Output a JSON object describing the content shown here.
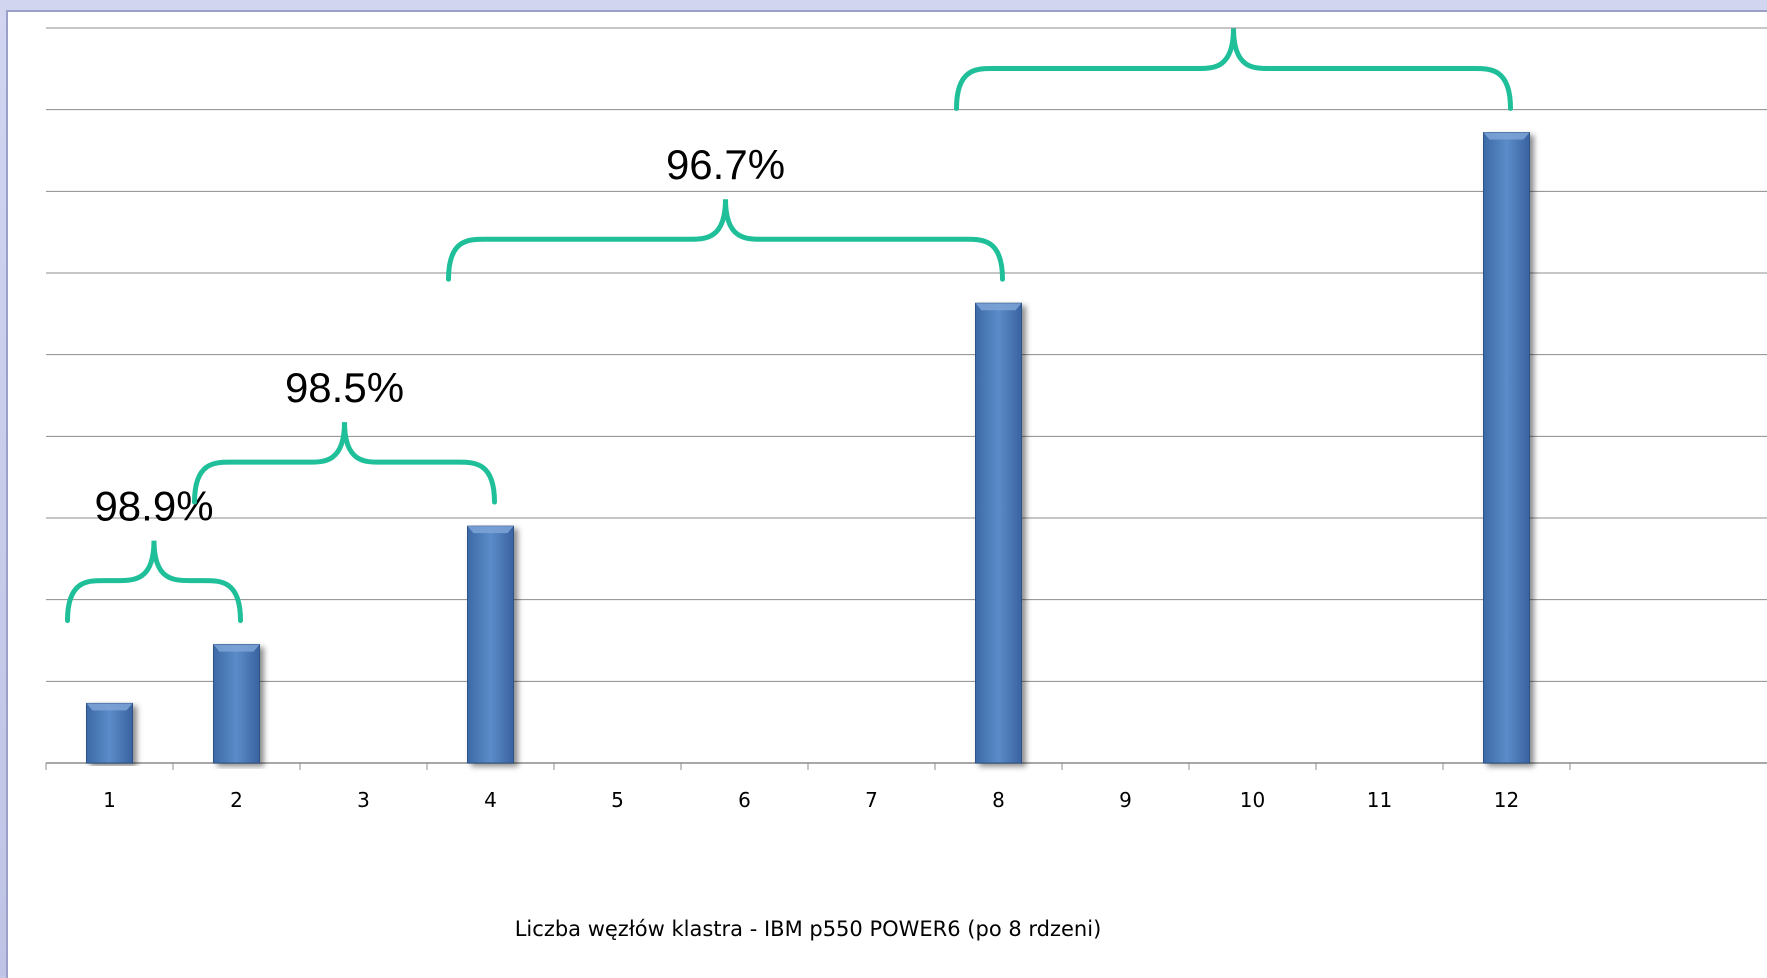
{
  "chart_data": {
    "type": "bar",
    "title": "",
    "xlabel": "Liczba węzłów klastra - IBM p550 POWER6 (po 8 rdzeni)",
    "ylabel": "",
    "categories": [
      "1",
      "2",
      "3",
      "4",
      "5",
      "6",
      "7",
      "8",
      "9",
      "10",
      "11",
      "12"
    ],
    "values": [
      0.73,
      1.45,
      null,
      2.9,
      null,
      null,
      null,
      5.63,
      null,
      null,
      null,
      7.72
    ],
    "ylim": [
      0,
      9
    ],
    "grid": true,
    "bar_color": "#4f81bd",
    "annotations": [
      {
        "label": "98.9%",
        "from": "1",
        "to": "2"
      },
      {
        "label": "98.5%",
        "from": "2",
        "to": "4"
      },
      {
        "label": "96.7%",
        "from": "4",
        "to": "8"
      },
      {
        "label": "",
        "from": "8",
        "to": "12"
      }
    ],
    "annotation_color": "#1fbf9a"
  }
}
